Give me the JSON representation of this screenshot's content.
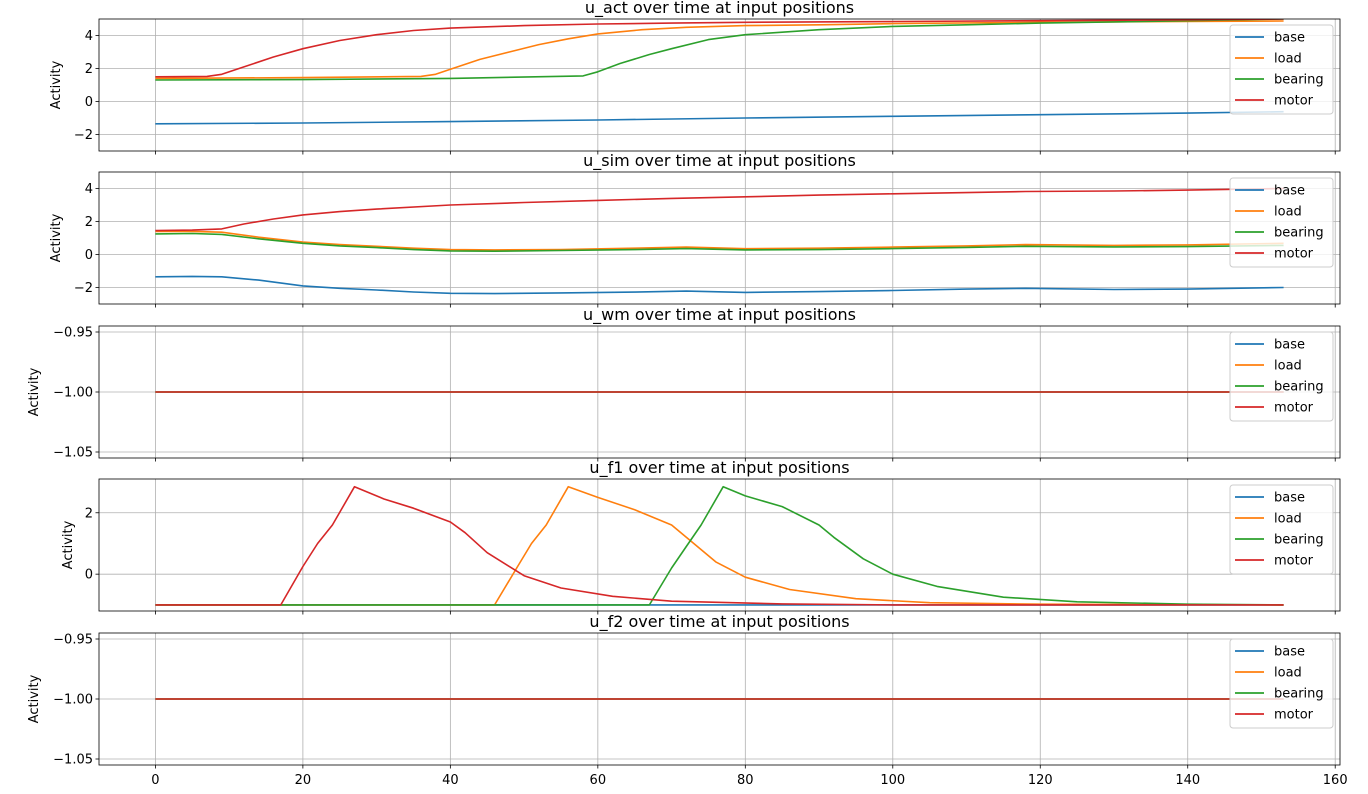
{
  "colors": {
    "base": "#1f77b4",
    "load": "#ff7f0e",
    "bearing": "#2ca02c",
    "motor": "#d62728",
    "grid": "#b0b0b0"
  },
  "chart_data": [
    {
      "type": "line",
      "title": "u_act over time at input positions",
      "ylabel": "Activity",
      "xlabel": "",
      "xlim": [
        -7.65,
        160.65
      ],
      "ylim": [
        -3.0,
        5.0
      ],
      "yticks": [
        -2,
        0,
        2,
        4
      ],
      "ytick_labels": [
        "−2",
        "0",
        "2",
        "4"
      ],
      "show_xtick_labels": false,
      "grid": true,
      "legend": "top-right",
      "series": [
        {
          "name": "base",
          "x": [
            0,
            20,
            40,
            60,
            80,
            100,
            120,
            140,
            153
          ],
          "y": [
            -1.35,
            -1.3,
            -1.22,
            -1.12,
            -1.0,
            -0.9,
            -0.8,
            -0.7,
            -0.62
          ]
        },
        {
          "name": "load",
          "x": [
            0,
            20,
            36,
            38,
            40,
            44,
            48,
            52,
            56,
            60,
            66,
            72,
            80,
            90,
            100,
            120,
            140,
            153
          ],
          "y": [
            1.4,
            1.45,
            1.52,
            1.65,
            1.95,
            2.55,
            3.0,
            3.45,
            3.8,
            4.1,
            4.35,
            4.5,
            4.6,
            4.65,
            4.72,
            4.8,
            4.85,
            4.88
          ]
        },
        {
          "name": "bearing",
          "x": [
            0,
            20,
            40,
            58,
            60,
            63,
            67,
            70,
            75,
            80,
            90,
            100,
            110,
            120,
            140,
            153
          ],
          "y": [
            1.3,
            1.33,
            1.4,
            1.55,
            1.8,
            2.3,
            2.85,
            3.2,
            3.75,
            4.05,
            4.35,
            4.55,
            4.65,
            4.75,
            4.9,
            5.0
          ]
        },
        {
          "name": "motor",
          "x": [
            0,
            7,
            9,
            12,
            16,
            20,
            25,
            30,
            35,
            40,
            50,
            60,
            70,
            80,
            100,
            120,
            140,
            153
          ],
          "y": [
            1.5,
            1.52,
            1.65,
            2.1,
            2.7,
            3.2,
            3.7,
            4.05,
            4.3,
            4.45,
            4.6,
            4.7,
            4.75,
            4.8,
            4.85,
            4.9,
            4.95,
            5.0
          ]
        }
      ]
    },
    {
      "type": "line",
      "title": "u_sim over time at input positions",
      "ylabel": "Activity",
      "xlabel": "",
      "xlim": [
        -7.65,
        160.65
      ],
      "ylim": [
        -3.0,
        5.0
      ],
      "yticks": [
        -2,
        0,
        2,
        4
      ],
      "ytick_labels": [
        "−2",
        "0",
        "2",
        "4"
      ],
      "show_xtick_labels": false,
      "grid": true,
      "legend": "top-right",
      "series": [
        {
          "name": "base",
          "x": [
            0,
            5,
            9,
            14,
            20,
            25,
            30,
            35,
            40,
            46,
            55,
            65,
            72,
            80,
            90,
            100,
            110,
            118,
            130,
            140,
            153
          ],
          "y": [
            -1.35,
            -1.33,
            -1.35,
            -1.55,
            -1.9,
            -2.05,
            -2.15,
            -2.27,
            -2.35,
            -2.37,
            -2.33,
            -2.28,
            -2.22,
            -2.3,
            -2.25,
            -2.18,
            -2.1,
            -2.05,
            -2.12,
            -2.1,
            -2.0
          ]
        },
        {
          "name": "load",
          "x": [
            0,
            5,
            9,
            14,
            20,
            25,
            30,
            35,
            40,
            46,
            55,
            65,
            72,
            80,
            90,
            100,
            110,
            118,
            130,
            140,
            153
          ],
          "y": [
            1.4,
            1.4,
            1.35,
            1.05,
            0.75,
            0.6,
            0.5,
            0.38,
            0.3,
            0.28,
            0.3,
            0.38,
            0.45,
            0.35,
            0.38,
            0.45,
            0.52,
            0.6,
            0.55,
            0.58,
            0.68
          ]
        },
        {
          "name": "bearing",
          "x": [
            0,
            5,
            9,
            14,
            20,
            25,
            30,
            35,
            40,
            46,
            55,
            65,
            72,
            80,
            90,
            100,
            110,
            118,
            130,
            140,
            153
          ],
          "y": [
            1.25,
            1.27,
            1.22,
            0.95,
            0.68,
            0.52,
            0.42,
            0.3,
            0.22,
            0.2,
            0.24,
            0.3,
            0.36,
            0.28,
            0.3,
            0.36,
            0.43,
            0.5,
            0.46,
            0.48,
            0.55
          ]
        },
        {
          "name": "motor",
          "x": [
            0,
            5,
            9,
            12,
            16,
            20,
            25,
            30,
            40,
            50,
            60,
            70,
            80,
            90,
            100,
            110,
            118,
            130,
            140,
            153
          ],
          "y": [
            1.45,
            1.48,
            1.55,
            1.85,
            2.15,
            2.4,
            2.6,
            2.75,
            3.0,
            3.15,
            3.28,
            3.4,
            3.5,
            3.6,
            3.68,
            3.75,
            3.82,
            3.85,
            3.9,
            4.0
          ]
        }
      ]
    },
    {
      "type": "line",
      "title": "u_wm over time at input positions",
      "ylabel": "Activity",
      "xlabel": "",
      "xlim": [
        -7.65,
        160.65
      ],
      "ylim": [
        -1.055,
        -0.945
      ],
      "yticks": [
        -1.05,
        -1.0,
        -0.95
      ],
      "ytick_labels": [
        "−1.05",
        "−1.00",
        "−0.95"
      ],
      "show_xtick_labels": false,
      "grid": true,
      "legend": "top-right",
      "series": [
        {
          "name": "base",
          "x": [
            0,
            153
          ],
          "y": [
            -1.0,
            -1.0
          ]
        },
        {
          "name": "load",
          "x": [
            0,
            153
          ],
          "y": [
            -1.0,
            -1.0
          ]
        },
        {
          "name": "bearing",
          "x": [
            0,
            153
          ],
          "y": [
            -1.0,
            -1.0
          ]
        },
        {
          "name": "motor",
          "x": [
            0,
            153
          ],
          "y": [
            -1.0,
            -1.0
          ]
        }
      ]
    },
    {
      "type": "line",
      "title": "u_f1 over time at input positions",
      "ylabel": "Activity",
      "xlabel": "",
      "xlim": [
        -7.65,
        160.65
      ],
      "ylim": [
        -1.2,
        3.1
      ],
      "yticks": [
        0,
        2
      ],
      "ytick_labels": [
        "0",
        "2"
      ],
      "show_xtick_labels": false,
      "grid": true,
      "legend": "top-right",
      "series": [
        {
          "name": "base",
          "x": [
            0,
            153
          ],
          "y": [
            -1.0,
            -1.0
          ]
        },
        {
          "name": "load",
          "x": [
            0,
            46,
            49,
            51,
            53,
            56,
            60,
            65,
            70,
            72,
            76,
            80,
            86,
            95,
            105,
            120,
            153
          ],
          "y": [
            -1.0,
            -1.0,
            0.2,
            1.0,
            1.6,
            2.85,
            2.5,
            2.1,
            1.6,
            1.2,
            0.4,
            -0.1,
            -0.5,
            -0.8,
            -0.93,
            -0.98,
            -1.0
          ]
        },
        {
          "name": "bearing",
          "x": [
            0,
            67,
            70,
            72,
            74,
            77,
            80,
            85,
            90,
            92,
            96,
            100,
            106,
            115,
            125,
            140,
            153
          ],
          "y": [
            -1.0,
            -1.0,
            0.2,
            0.9,
            1.6,
            2.85,
            2.55,
            2.2,
            1.6,
            1.2,
            0.5,
            0.0,
            -0.4,
            -0.75,
            -0.9,
            -0.98,
            -1.0
          ]
        },
        {
          "name": "motor",
          "x": [
            0,
            17,
            20,
            22,
            24,
            27,
            31,
            35,
            40,
            42,
            45,
            50,
            55,
            62,
            70,
            85,
            100,
            153
          ],
          "y": [
            -1.0,
            -1.0,
            0.25,
            1.0,
            1.6,
            2.85,
            2.45,
            2.15,
            1.7,
            1.35,
            0.7,
            -0.05,
            -0.45,
            -0.72,
            -0.88,
            -0.97,
            -1.0,
            -1.0
          ]
        }
      ]
    },
    {
      "type": "line",
      "title": "u_f2 over time at input positions",
      "ylabel": "Activity",
      "xlabel": "",
      "xlim": [
        -7.65,
        160.65
      ],
      "ylim": [
        -1.055,
        -0.945
      ],
      "yticks": [
        -1.05,
        -1.0,
        -0.95
      ],
      "ytick_labels": [
        "−1.05",
        "−1.00",
        "−0.95"
      ],
      "show_xtick_labels": true,
      "xticks": [
        0,
        20,
        40,
        60,
        80,
        100,
        120,
        140,
        160
      ],
      "xtick_labels": [
        "0",
        "20",
        "40",
        "60",
        "80",
        "100",
        "120",
        "140",
        "160"
      ],
      "grid": true,
      "legend": "top-right",
      "series": [
        {
          "name": "base",
          "x": [
            0,
            153
          ],
          "y": [
            -1.0,
            -1.0
          ]
        },
        {
          "name": "load",
          "x": [
            0,
            153
          ],
          "y": [
            -1.0,
            -1.0
          ]
        },
        {
          "name": "bearing",
          "x": [
            0,
            153
          ],
          "y": [
            -1.0,
            -1.0
          ]
        },
        {
          "name": "motor",
          "x": [
            0,
            153
          ],
          "y": [
            -1.0,
            -1.0
          ]
        }
      ]
    }
  ]
}
